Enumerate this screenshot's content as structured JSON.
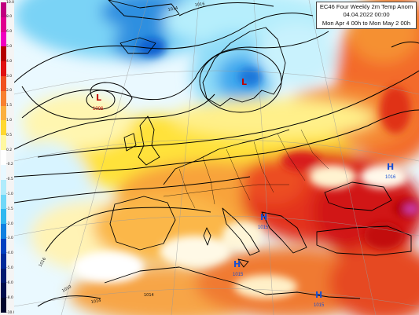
{
  "title": {
    "line1": "EC46 Four Weekly 2m Temp Anom",
    "line2": "04.04.2022 00:00",
    "line3": "Mon Apr 4 00h to Mon May 2 00h"
  },
  "colorbar": {
    "labels": [
      "10.0",
      "8.0",
      "6.0",
      "5.0",
      "4.0",
      "3.0",
      "2.0",
      "1.5",
      "1.0",
      "0.5",
      "0.2",
      "-0.2",
      "-0.5",
      "-1.0",
      "-1.5",
      "-2.0",
      "-3.0",
      "-4.0",
      "-5.0",
      "-6.0",
      "-8.0",
      "-10.0"
    ],
    "colors": [
      "#c0007f",
      "#e0008f",
      "#f000c0",
      "#b40000",
      "#e01010",
      "#f05020",
      "#f88030",
      "#fbb040",
      "#ffd830",
      "#fff8a0",
      "#ffffff",
      "#e8f8ff",
      "#b0ecfc",
      "#70d8f8",
      "#30b8f0",
      "#1080e0",
      "#0040c0",
      "#002a9a",
      "#001a70",
      "#000e4c",
      "#00062c"
    ]
  },
  "pressure_systems": [
    {
      "type": "L",
      "value": "1006",
      "region": "mid-Atlantic",
      "color": "#c00000"
    },
    {
      "type": "L",
      "value": "",
      "region": "Scandinavia",
      "color": "#c00000"
    },
    {
      "type": "H",
      "value": "1016",
      "region": "Black Sea",
      "color": "#1a4fd0"
    },
    {
      "type": "H",
      "value": "1015",
      "region": "Balkans",
      "color": "#1a4fd0"
    },
    {
      "type": "H",
      "value": "1015",
      "region": "Tyrrhenian Sea",
      "color": "#1a4fd0"
    },
    {
      "type": "H",
      "value": "1015",
      "region": "North Africa",
      "color": "#1a4fd0"
    }
  ],
  "isobar_labels": [
    "1014",
    "1016",
    "1010",
    "1014",
    "1016",
    "1014"
  ]
}
